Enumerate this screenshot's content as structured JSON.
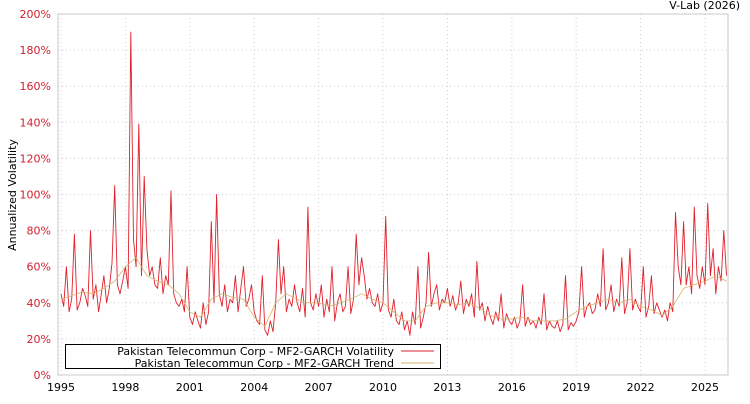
{
  "credit": "V-Lab (2026)",
  "chart_data": {
    "type": "line",
    "title": "",
    "xlabel": "",
    "ylabel": "Annualized Volatility",
    "xlim": [
      1994.86,
      2026.07
    ],
    "ylim": [
      0,
      200
    ],
    "grid": true,
    "legend_position": "bottom-left",
    "x_ticks": [
      "1995",
      "1998",
      "2001",
      "2004",
      "2007",
      "2010",
      "2013",
      "2016",
      "2019",
      "2022",
      "2025"
    ],
    "y_ticks": [
      "0%",
      "20%",
      "40%",
      "60%",
      "80%",
      "100%",
      "120%",
      "140%",
      "160%",
      "180%",
      "200%"
    ],
    "colors": {
      "volatility": "#e0202c",
      "trend": "#d4b46a",
      "tick": "#d0202e"
    },
    "series": [
      {
        "name": "Pakistan Telecommun Corp - MF2-GARCH Volatility",
        "x_start": 1995,
        "x_step": 0.125,
        "values": [
          45,
          38,
          60,
          35,
          42,
          78,
          36,
          40,
          48,
          44,
          38,
          80,
          42,
          50,
          35,
          45,
          55,
          40,
          48,
          62,
          105,
          50,
          45,
          52,
          60,
          48,
          190,
          75,
          60,
          139,
          55,
          110,
          70,
          55,
          60,
          50,
          48,
          65,
          45,
          55,
          50,
          102,
          45,
          40,
          38,
          42,
          35,
          60,
          32,
          28,
          35,
          30,
          26,
          40,
          28,
          35,
          85,
          40,
          100,
          45,
          38,
          50,
          35,
          42,
          40,
          55,
          35,
          48,
          60,
          38,
          42,
          50,
          35,
          30,
          28,
          55,
          25,
          22,
          30,
          24,
          40,
          75,
          45,
          60,
          35,
          42,
          38,
          50,
          40,
          35,
          48,
          32,
          93,
          40,
          36,
          45,
          38,
          50,
          32,
          42,
          35,
          60,
          30,
          40,
          45,
          35,
          38,
          60,
          34,
          42,
          78,
          50,
          65,
          55,
          42,
          48,
          40,
          38,
          45,
          35,
          40,
          88,
          36,
          32,
          42,
          30,
          28,
          35,
          25,
          30,
          22,
          35,
          28,
          60,
          26,
          32,
          40,
          68,
          38,
          45,
          50,
          36,
          42,
          40,
          48,
          38,
          44,
          36,
          40,
          52,
          34,
          42,
          38,
          45,
          32,
          63,
          36,
          40,
          30,
          38,
          32,
          28,
          35,
          30,
          45,
          26,
          34,
          30,
          28,
          32,
          26,
          30,
          50,
          27,
          32,
          28,
          30,
          26,
          32,
          28,
          45,
          25,
          30,
          27,
          26,
          30,
          24,
          28,
          55,
          25,
          29,
          27,
          30,
          35,
          60,
          32,
          38,
          40,
          34,
          36,
          45,
          38,
          70,
          36,
          40,
          50,
          35,
          42,
          38,
          65,
          34,
          40,
          70,
          36,
          42,
          38,
          35,
          60,
          32,
          38,
          55,
          34,
          40,
          36,
          32,
          36,
          30,
          40,
          35,
          90,
          60,
          50,
          85,
          50,
          60,
          45,
          93,
          55,
          48,
          60,
          50,
          95,
          55,
          70,
          45,
          60,
          52,
          80,
          55
        ]
      },
      {
        "name": "Pakistan Telecommun Corp - MF2-GARCH Trend",
        "x_start": 1995,
        "x_step": 0.5,
        "values": [
          42,
          44,
          46,
          45,
          48,
          52,
          60,
          65,
          55,
          52,
          50,
          45,
          35,
          32,
          42,
          45,
          43,
          42,
          32,
          27,
          40,
          45,
          42,
          40,
          40,
          38,
          40,
          42,
          45,
          42,
          40,
          35,
          30,
          30,
          38,
          40,
          40,
          39,
          40,
          37,
          33,
          31,
          31,
          32,
          30,
          30,
          30,
          31,
          35,
          38,
          40,
          42,
          40,
          42,
          38,
          36,
          33,
          38,
          48,
          50,
          52,
          55,
          52
        ]
      }
    ]
  }
}
